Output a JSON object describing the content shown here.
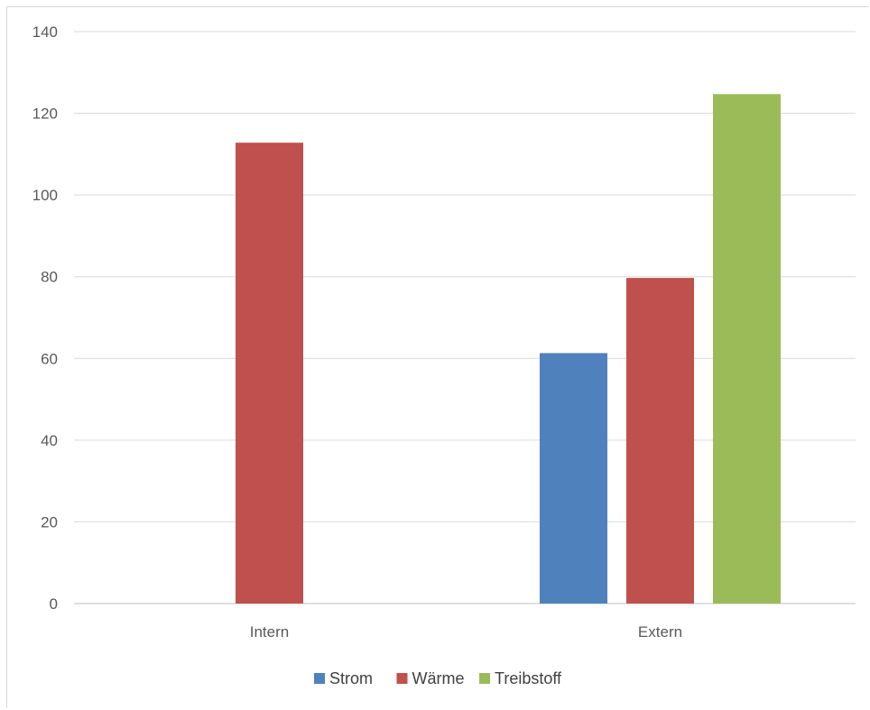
{
  "chart_data": {
    "type": "bar",
    "categories": [
      "Intern",
      "Extern"
    ],
    "series": [
      {
        "name": "Strom",
        "color": "#4f81bd",
        "values": [
          0,
          61.3
        ]
      },
      {
        "name": "Wärme",
        "color": "#c0504d",
        "values": [
          112.8,
          79.7
        ]
      },
      {
        "name": "Treibstoff",
        "color": "#9bbb59",
        "values": [
          0,
          124.7
        ]
      }
    ],
    "yticks": [
      0,
      20,
      40,
      60,
      80,
      100,
      120,
      140
    ],
    "ylim": [
      0,
      140
    ],
    "grid": true,
    "legend": "bottom",
    "title": "",
    "xlabel": "",
    "ylabel": ""
  }
}
